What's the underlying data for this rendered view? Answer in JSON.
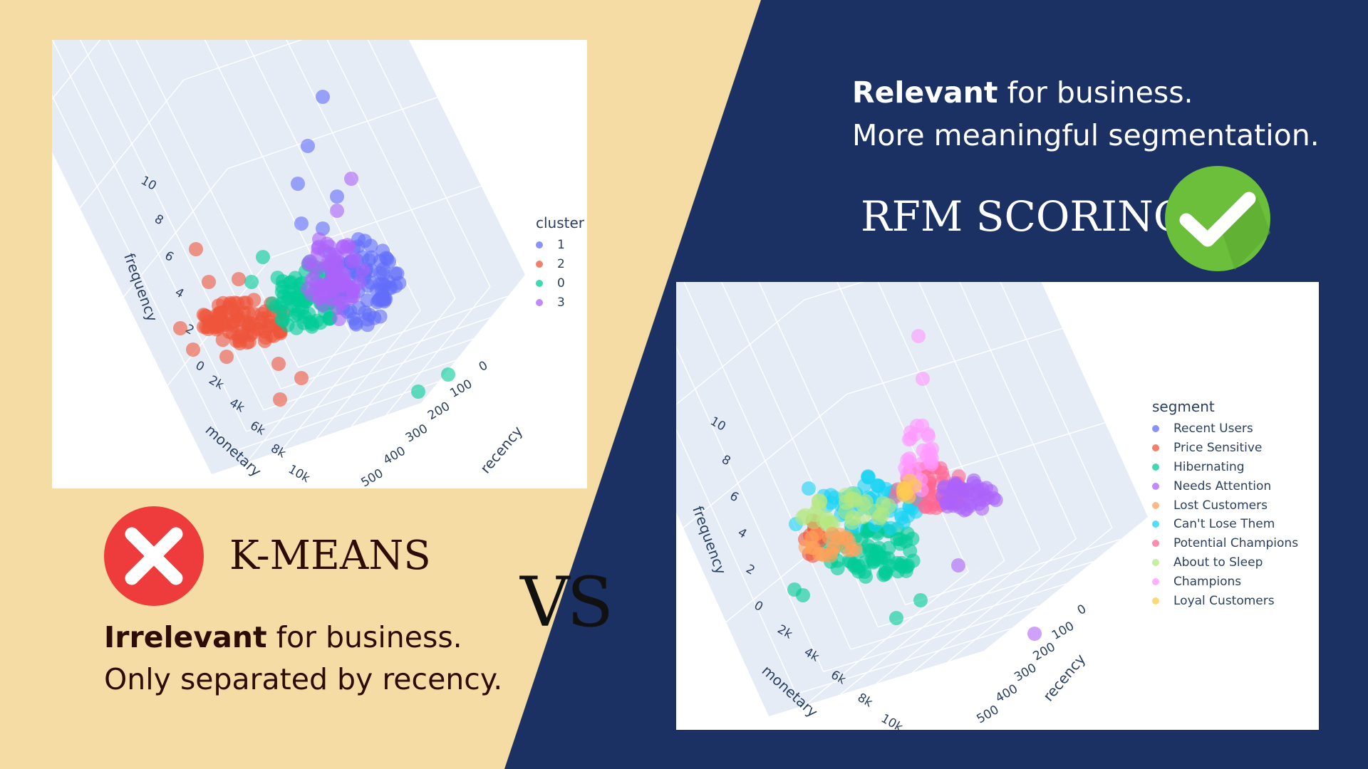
{
  "colors": {
    "left_bg": "#f5dca4",
    "right_bg": "#1c3163",
    "text_dark": "#2b0d06",
    "text_light": "#ffffff",
    "check_green": "#6cbf3a",
    "cross_red": "#ee3b3b",
    "plot_axis_text": "#2a3f5f"
  },
  "left": {
    "method": "K-MEANS",
    "icon": "cross-icon",
    "verdict_bold": "Irrelevant",
    "verdict_rest": " for business.",
    "verdict_line2": "Only separated by recency."
  },
  "vs_label": "VS",
  "right": {
    "method": "RFM SCORING",
    "icon": "check-icon",
    "verdict_bold": "Relevant",
    "verdict_rest": " for business.",
    "verdict_line2": "More meaningful segmentation."
  },
  "chart_data": [
    {
      "type": "scatter3d",
      "axes": {
        "frequency": {
          "label": "frequency",
          "ticks": [
            "0",
            "2",
            "4",
            "6",
            "8",
            "10"
          ]
        },
        "monetary": {
          "label": "monetary",
          "ticks": [
            "2k",
            "4k",
            "6k",
            "8k",
            "10k"
          ]
        },
        "recency": {
          "label": "recency",
          "ticks": [
            "0",
            "100",
            "200",
            "300",
            "400",
            "500"
          ]
        }
      },
      "legend_title": "cluster",
      "series": [
        {
          "name": "1",
          "color": "#636efa"
        },
        {
          "name": "2",
          "color": "#ef553b"
        },
        {
          "name": "0",
          "color": "#00cc96"
        },
        {
          "name": "3",
          "color": "#ab63fa"
        }
      ]
    },
    {
      "type": "scatter3d",
      "axes": {
        "frequency": {
          "label": "frequency",
          "ticks": [
            "0",
            "2",
            "4",
            "6",
            "8",
            "10"
          ]
        },
        "monetary": {
          "label": "monetary",
          "ticks": [
            "2k",
            "4k",
            "6k",
            "8k",
            "10k"
          ]
        },
        "recency": {
          "label": "recency",
          "ticks": [
            "0",
            "100",
            "200",
            "300",
            "400",
            "500"
          ]
        }
      },
      "legend_title": "segment",
      "series": [
        {
          "name": "Recent Users",
          "color": "#636efa"
        },
        {
          "name": "Price Sensitive",
          "color": "#ef553b"
        },
        {
          "name": "Hibernating",
          "color": "#00cc96"
        },
        {
          "name": "Needs Attention",
          "color": "#ab63fa"
        },
        {
          "name": "Lost Customers",
          "color": "#ffa15a"
        },
        {
          "name": "Can't Lose Them",
          "color": "#19d3f3"
        },
        {
          "name": "Potential Champions",
          "color": "#ff6692"
        },
        {
          "name": "About to Sleep",
          "color": "#b6e880"
        },
        {
          "name": "Champions",
          "color": "#ff97ff"
        },
        {
          "name": "Loyal Customers",
          "color": "#fecb52"
        }
      ]
    }
  ]
}
